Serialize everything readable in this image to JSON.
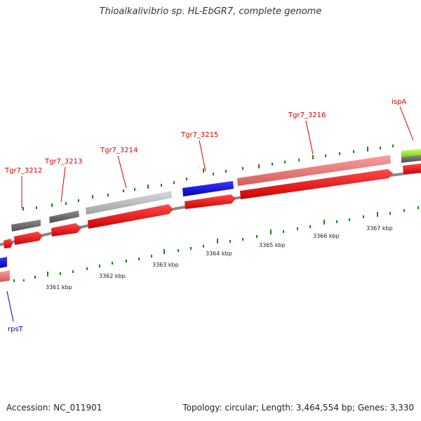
{
  "title": "Thioalkalivibrio sp. HL-EbGR7, complete genome",
  "footer": {
    "accession": "Accession: NC_011901",
    "topology": "Topology: circular; Length: 3,464,554 bp; Genes: 3,330"
  },
  "gene_labels": {
    "tgr7_3212": "Tgr7_3212",
    "tgr7_3213": "Tgr7_3213",
    "tgr7_3214": "Tgr7_3214",
    "tgr7_3215": "Tgr7_3215",
    "tgr7_3216": "Tgr7_3216",
    "ispA": "ispA",
    "rpsT": "rpsT"
  },
  "scale_labels": {
    "k3361": "3361 kbp",
    "k3362": "3362 kbp",
    "k3363": "3363 kbp",
    "k3364": "3364 kbp",
    "k3365": "3365 kbp",
    "k3366": "3366 kbp",
    "k3367": "3367 kbp"
  },
  "colors": {
    "cds_red": "#ff0000",
    "gene_pink": "#f07070",
    "blue": "#0000dd",
    "gray_dark": "#666666",
    "gray_light": "#bbbbbb",
    "lime": "#99ee22",
    "tick_green": "#118811",
    "backbone": "#888888"
  }
}
